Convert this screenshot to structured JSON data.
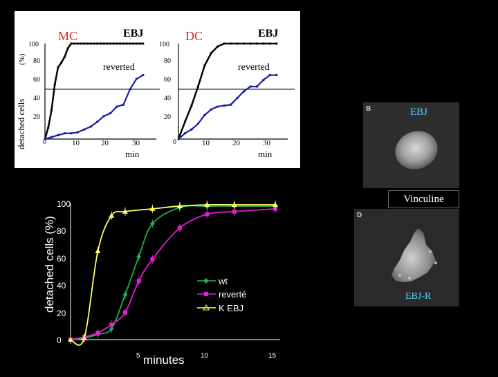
{
  "colors": {
    "background": "#000000",
    "top_line_reverted": "#1a1aa6",
    "wt": "#22b14c",
    "reverte": "#e020d0",
    "kebj": "#ffff66",
    "photo_label": "#5ad0ff"
  },
  "top_panel": {
    "ylabel": "detached cells",
    "ylabel_unit": "(%)",
    "left": {
      "title": "MC",
      "corner_label": "EBJ",
      "curve_label": "reverted",
      "xlabel": "min",
      "y_ticks": [
        "100",
        "80",
        "60",
        "40",
        "20",
        "0"
      ],
      "x_ticks": [
        "10",
        "20",
        "30"
      ]
    },
    "right": {
      "title": "DC",
      "corner_label": "EBJ",
      "curve_label": "reverted",
      "xlabel": "min",
      "y_ticks": [
        "100",
        "80",
        "60",
        "40",
        "20",
        "0"
      ],
      "x_ticks": [
        "10",
        "20",
        "30"
      ]
    }
  },
  "chart_data": [
    {
      "type": "line",
      "title": "MC",
      "xlabel": "min",
      "ylabel": "detached cells (%)",
      "xlim": [
        0,
        33
      ],
      "ylim": [
        0,
        100
      ],
      "threshold_line": 50,
      "series": [
        {
          "name": "EBJ",
          "x": [
            0,
            1,
            2,
            3,
            4,
            5,
            6,
            7,
            8,
            9,
            10,
            11,
            12,
            13,
            14,
            15,
            16,
            17,
            18,
            19,
            20,
            21,
            22,
            23,
            24,
            25,
            26,
            27,
            28,
            29,
            30
          ],
          "y": [
            0,
            12,
            30,
            57,
            75,
            80,
            86,
            95,
            100,
            100,
            100,
            100,
            100,
            100,
            100,
            100,
            100,
            100,
            100,
            100,
            100,
            100,
            100,
            100,
            100,
            100,
            100,
            100,
            100,
            100,
            100
          ]
        },
        {
          "name": "reverted",
          "x": [
            0,
            2,
            4,
            6,
            8,
            10,
            12,
            14,
            16,
            18,
            20,
            22,
            24,
            26,
            28,
            30
          ],
          "y": [
            0,
            2,
            4,
            6,
            6,
            7,
            10,
            13,
            18,
            24,
            27,
            34,
            36,
            52,
            63,
            67
          ]
        }
      ]
    },
    {
      "type": "line",
      "title": "DC",
      "xlabel": "min",
      "ylabel": "detached cells (%)",
      "xlim": [
        0,
        33
      ],
      "ylim": [
        0,
        100
      ],
      "threshold_line": 50,
      "series": [
        {
          "name": "EBJ",
          "x": [
            0,
            2,
            4,
            6,
            8,
            10,
            12,
            14,
            16,
            18,
            20,
            22,
            24,
            26,
            28,
            30
          ],
          "y": [
            0,
            18,
            35,
            55,
            77,
            90,
            97,
            100,
            100,
            100,
            100,
            100,
            100,
            100,
            100,
            100
          ]
        },
        {
          "name": "reverted",
          "x": [
            0,
            2,
            4,
            6,
            8,
            10,
            12,
            14,
            16,
            18,
            20,
            22,
            24,
            26,
            28,
            30
          ],
          "y": [
            0,
            6,
            10,
            16,
            25,
            31,
            34,
            35,
            36,
            43,
            50,
            55,
            55,
            62,
            67,
            67
          ]
        }
      ]
    },
    {
      "type": "line",
      "title": "",
      "xlabel": "minutes",
      "ylabel": "detached cells (%)",
      "xlim": [
        0,
        15
      ],
      "ylim": [
        0,
        100
      ],
      "x_ticks": [
        5,
        10,
        15
      ],
      "y_ticks": [
        0,
        20,
        40,
        60,
        80,
        100
      ],
      "legend": "center-right",
      "series": [
        {
          "name": "wt",
          "x": [
            0,
            1,
            2,
            3,
            4,
            5,
            6,
            8,
            10,
            12,
            15
          ],
          "y": [
            0,
            1,
            4,
            8,
            33,
            61,
            85,
            97,
            98,
            98,
            98
          ]
        },
        {
          "name": "reverté",
          "x": [
            0,
            1,
            2,
            3,
            4,
            5,
            6,
            8,
            10,
            12,
            15
          ],
          "y": [
            0,
            2,
            5,
            11,
            20,
            43,
            59,
            82,
            92,
            94,
            96
          ]
        },
        {
          "name": "K EBJ",
          "x": [
            0,
            1,
            2,
            3,
            4,
            6,
            8,
            10,
            12,
            15
          ],
          "y": [
            0,
            1,
            65,
            91,
            94,
            96,
            98,
            99,
            99,
            99
          ]
        }
      ]
    }
  ],
  "bottom_chart": {
    "ylabel": "detached cells (%)",
    "xlabel": "minutes",
    "y_ticks": [
      "0",
      "20",
      "40",
      "60",
      "80",
      "100"
    ],
    "x_ticks": [
      "5",
      "10",
      "15"
    ],
    "legend": [
      "wt",
      "reverté",
      "K EBJ"
    ]
  },
  "photos": {
    "top_panel_letter": "B",
    "top_label": "EBJ",
    "middle_label": "Vinculine",
    "bottom_panel_letter": "D",
    "bottom_label": "EBJ-R"
  }
}
